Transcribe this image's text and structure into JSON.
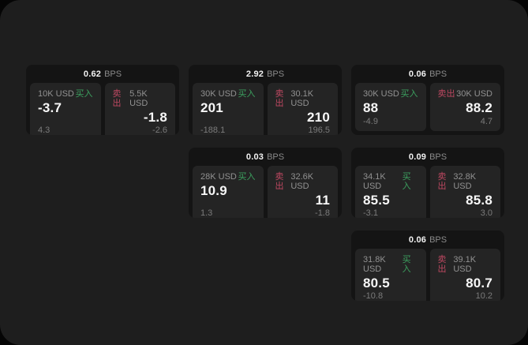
{
  "colors": {
    "outer_bg": "#050505",
    "window_bg": "#1e1e1e",
    "card_bg": "#141414",
    "panel_bg": "#242424",
    "text_primary": "#f7f7f7",
    "text_secondary": "#8a8a8a",
    "buy_green": "#3ca05f",
    "sell_red": "#bd4861"
  },
  "labels": {
    "bps_unit": "BPS",
    "buy": "买入",
    "sell": "卖出"
  },
  "cards": [
    {
      "bps": "0.62",
      "col": 1,
      "row": 1,
      "buy": {
        "amount": "10K USD",
        "price": "-3.7",
        "delta": "4.3"
      },
      "sell": {
        "amount": "5.5K USD",
        "price": "-1.8",
        "delta": "-2.6"
      }
    },
    {
      "bps": "2.92",
      "col": 2,
      "row": 1,
      "buy": {
        "amount": "30K USD",
        "price": "201",
        "delta": "-188.1"
      },
      "sell": {
        "amount": "30.1K USD",
        "price": "210",
        "delta": "196.5"
      }
    },
    {
      "bps": "0.06",
      "col": 3,
      "row": 1,
      "buy": {
        "amount": "30K USD",
        "price": "88",
        "delta": "-4.9"
      },
      "sell": {
        "amount": "30K USD",
        "price": "88.2",
        "delta": "4.7"
      }
    },
    {
      "bps": "0.03",
      "col": 2,
      "row": 2,
      "buy": {
        "amount": "28K USD",
        "price": "10.9",
        "delta": "1.3"
      },
      "sell": {
        "amount": "32.6K USD",
        "price": "11",
        "delta": "-1.8"
      }
    },
    {
      "bps": "0.09",
      "col": 3,
      "row": 2,
      "buy": {
        "amount": "34.1K USD",
        "price": "85.5",
        "delta": "-3.1"
      },
      "sell": {
        "amount": "32.8K USD",
        "price": "85.8",
        "delta": "3.0"
      }
    },
    {
      "bps": "0.06",
      "col": 3,
      "row": 3,
      "buy": {
        "amount": "31.8K USD",
        "price": "80.5",
        "delta": "-10.8"
      },
      "sell": {
        "amount": "39.1K USD",
        "price": "80.7",
        "delta": "10.2"
      }
    }
  ]
}
